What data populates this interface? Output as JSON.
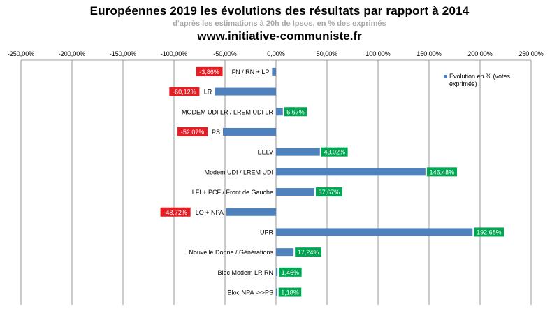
{
  "header": {
    "title": "Européennes  2019 les évolutions  des résultats  par rapport  à 2014",
    "subtitle": "d'après les estimations à 20h de Ipsos, en % des exprimés",
    "site": "www.initiative-communiste.fr"
  },
  "chart_data": {
    "type": "bar",
    "orientation": "horizontal",
    "xlim": [
      -250,
      250
    ],
    "x_ticks": [
      -250,
      -200,
      -150,
      -100,
      -50,
      0,
      50,
      100,
      150,
      200,
      250
    ],
    "x_tick_labels": [
      "-250,00%",
      "-200,00%",
      "-150,00%",
      "-100,00%",
      "-50,00%",
      "0,00%",
      "50,00%",
      "100,00%",
      "150,00%",
      "200,00%",
      "250,00%"
    ],
    "grid": true,
    "legend_position": "right",
    "legend_lines": [
      "Evolution en % (votes",
      "exprimés)"
    ],
    "categories": [
      "FN / RN + LP",
      "LR",
      "MODEM UDI LR / LREM UDI LR",
      "PS",
      "EELV",
      "Modem UDI / LREM UDI",
      "LFI + PCF / Front de Gauche",
      "LO + NPA",
      "UPR",
      "Nouvelle Donne  / Générations",
      "Bloc Modem LR RN",
      "Bloc NPA <->PS"
    ],
    "series": [
      {
        "name": "Evolution en % (votes exprimés)",
        "values": [
          -3.86,
          -60.12,
          6.67,
          -52.07,
          43.02,
          146.48,
          37.67,
          -48.72,
          192.68,
          17.24,
          1.46,
          1.18
        ],
        "value_labels": [
          "-3,86%",
          "-60,12%",
          "6,67%",
          "-52,07%",
          "43,02%",
          "146,48%",
          "37,67%",
          "-48,72%",
          "192,68%",
          "17,24%",
          "1,46%",
          "1,18%"
        ]
      }
    ],
    "colors": {
      "bar": "#4f81bd",
      "positive_label": "#00a651",
      "negative_label": "#e31e24",
      "grid": "#808080"
    }
  }
}
